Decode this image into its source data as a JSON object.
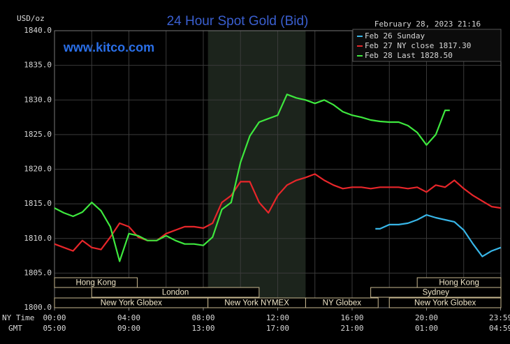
{
  "chart_data": {
    "type": "line",
    "title": "24 Hour Spot Gold (Bid)",
    "subtitle": "www.kitco.com",
    "timestamp": "February 28, 2023 21:16",
    "y_label": "USD/oz",
    "x_label": "NY Time",
    "x2_label": "GMT",
    "xlim": [
      0,
      24
    ],
    "ylim": [
      1800,
      1840
    ],
    "yticks": [
      {
        "value": 1800,
        "label": "1800.0"
      },
      {
        "value": 1805,
        "label": "1805.0"
      },
      {
        "value": 1810,
        "label": "1810.0"
      },
      {
        "value": 1815,
        "label": "1815.0"
      },
      {
        "value": 1820,
        "label": "1820.0"
      },
      {
        "value": 1825,
        "label": "1825.0"
      },
      {
        "value": 1830,
        "label": "1830.0"
      },
      {
        "value": 1835,
        "label": "1835.0"
      },
      {
        "value": 1840,
        "label": "1840.0"
      }
    ],
    "xticks": [
      {
        "value": 0,
        "label": "00:00"
      },
      {
        "value": 4,
        "label": "04:00"
      },
      {
        "value": 8,
        "label": "08:00"
      },
      {
        "value": 12,
        "label": "12:00"
      },
      {
        "value": 16,
        "label": "16:00"
      },
      {
        "value": 20,
        "label": "20:00"
      },
      {
        "value": 23.983,
        "label": "23:59"
      }
    ],
    "x2tick_labels": [
      "05:00",
      "09:00",
      "13:00",
      "17:00",
      "21:00",
      "01:00",
      "04:59"
    ],
    "xgrid": [
      0,
      2,
      4,
      6,
      8,
      10,
      12,
      14,
      16,
      18,
      20,
      22,
      24
    ],
    "grid": true,
    "shade": [
      8.25,
      13.5
    ],
    "sessions": [
      {
        "name": "Hong Kong",
        "start": 0,
        "end": 4.45,
        "row": 1
      },
      {
        "name": "London",
        "start": 2,
        "end": 11,
        "row": 2
      },
      {
        "name": "New York Globex",
        "start": 0,
        "end": 8.25,
        "row": 3
      },
      {
        "name": "New York NYMEX",
        "start": 8.25,
        "end": 13.5,
        "row": 3
      },
      {
        "name": "NY Globex",
        "start": 13.5,
        "end": 17.4,
        "row": 3
      },
      {
        "name": "Sydney",
        "start": 17,
        "end": 24,
        "row": 2
      },
      {
        "name": "Hong Kong",
        "start": 19.5,
        "end": 24,
        "row": 1
      },
      {
        "name": "New York Globex",
        "start": 18,
        "end": 24,
        "row": 3
      }
    ],
    "series": [
      {
        "name": "Feb 26 Sunday",
        "color": "#38b6e8",
        "x": [
          17.25,
          17.5,
          18,
          18.5,
          19,
          19.5,
          20,
          20.5,
          21,
          21.5,
          22,
          22.5,
          23,
          23.5,
          24
        ],
        "values": [
          1811.4,
          1811.4,
          1812.0,
          1812.0,
          1812.2,
          1812.7,
          1813.4,
          1813.0,
          1812.7,
          1812.4,
          1811.2,
          1809.2,
          1807.4,
          1808.2,
          1808.7
        ]
      },
      {
        "name": "Feb 27 NY close 1817.30",
        "color": "#e8262a",
        "x": [
          0,
          0.5,
          1,
          1.5,
          2,
          2.5,
          3,
          3.5,
          4,
          4.5,
          5,
          5.5,
          6,
          6.5,
          7,
          7.5,
          8,
          8.5,
          9,
          9.5,
          10,
          10.5,
          11,
          11.5,
          12,
          12.5,
          13,
          13.5,
          14,
          14.5,
          15,
          15.5,
          16,
          16.5,
          17,
          17.5,
          18,
          18.5,
          19,
          19.5,
          20,
          20.5,
          21,
          21.5,
          22,
          22.5,
          23,
          23.5,
          24
        ],
        "values": [
          1809.2,
          1808.7,
          1808.2,
          1809.7,
          1808.7,
          1808.4,
          1810.2,
          1812.2,
          1811.7,
          1810.2,
          1809.7,
          1809.7,
          1810.7,
          1811.2,
          1811.7,
          1811.7,
          1811.5,
          1812.2,
          1815.2,
          1816.2,
          1818.2,
          1818.2,
          1815.2,
          1813.7,
          1816.2,
          1817.7,
          1818.4,
          1818.8,
          1819.3,
          1818.4,
          1817.7,
          1817.2,
          1817.4,
          1817.4,
          1817.2,
          1817.4,
          1817.4,
          1817.4,
          1817.2,
          1817.4,
          1816.7,
          1817.7,
          1817.4,
          1818.4,
          1817.2,
          1816.2,
          1815.4,
          1814.6,
          1814.4
        ]
      },
      {
        "name": "Feb 28 Last 1828.50",
        "color": "#3ee83e",
        "x": [
          0,
          0.5,
          1,
          1.5,
          2,
          2.5,
          3,
          3.5,
          4,
          4.5,
          5,
          5.5,
          6,
          6.5,
          7,
          7.5,
          8,
          8.5,
          9,
          9.5,
          10,
          10.5,
          11,
          11.5,
          12,
          12.5,
          13,
          13.5,
          14,
          14.5,
          15,
          15.5,
          16,
          16.5,
          17,
          17.5,
          18,
          18.5,
          19,
          19.5,
          20,
          20.5,
          21,
          21.25
        ],
        "values": [
          1814.4,
          1813.7,
          1813.2,
          1813.8,
          1815.2,
          1814.0,
          1811.7,
          1806.7,
          1810.7,
          1810.4,
          1809.7,
          1809.7,
          1810.4,
          1809.7,
          1809.2,
          1809.2,
          1809.0,
          1810.2,
          1814.2,
          1815.2,
          1821.0,
          1824.8,
          1826.8,
          1827.3,
          1827.8,
          1830.8,
          1830.3,
          1830.0,
          1829.5,
          1830.0,
          1829.3,
          1828.3,
          1827.8,
          1827.5,
          1827.1,
          1826.9,
          1826.8,
          1826.8,
          1826.3,
          1825.3,
          1823.5,
          1825.0,
          1828.5,
          1828.5
        ]
      }
    ]
  }
}
